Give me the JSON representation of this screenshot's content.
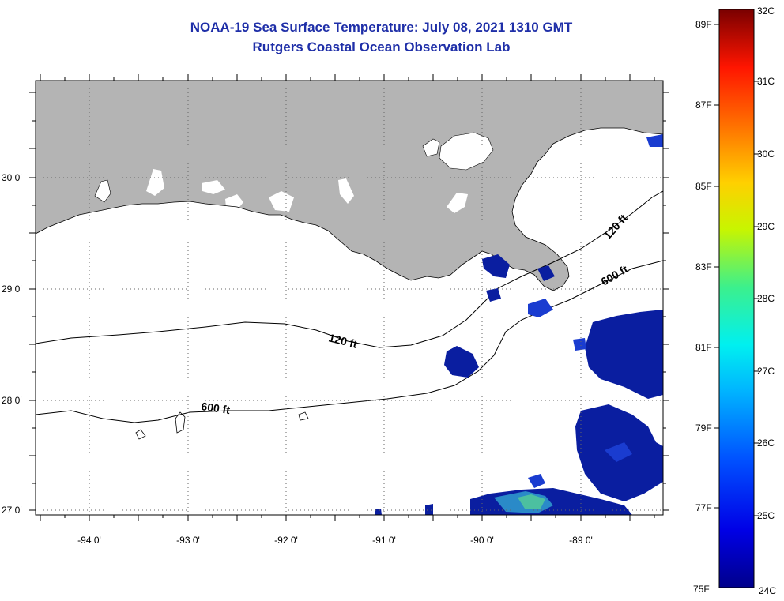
{
  "header": {
    "title": "NOAA-19 Sea Surface Temperature:  July 08, 2021 1310 GMT",
    "subtitle": "Rutgers Coastal Ocean Observation Lab"
  },
  "map": {
    "lon_labels": [
      {
        "lon": -94,
        "label": "-94 0'"
      },
      {
        "lon": -93,
        "label": "-93 0'"
      },
      {
        "lon": -92,
        "label": "-92 0'"
      },
      {
        "lon": -91,
        "label": "-91 0'"
      },
      {
        "lon": -90,
        "label": "-90 0'"
      },
      {
        "lon": -89,
        "label": "-89 0'"
      }
    ],
    "lat_labels": [
      {
        "lat": 30,
        "label": "30 0'"
      },
      {
        "lat": 29,
        "label": "29 0'"
      },
      {
        "lat": 28,
        "label": "28 0'"
      },
      {
        "lat": 27,
        "label": "27 0'"
      }
    ],
    "contour_labels": [
      "120 ft",
      "600 ft",
      "120 ft",
      "600 ft"
    ],
    "colors": {
      "land": "#b4b4b4",
      "water_no_data": "#ffffff",
      "cloud_free_cold": "#0a1ea0"
    }
  },
  "colorbar": {
    "fahrenheit": [
      "89F",
      "87F",
      "85F",
      "83F",
      "81F",
      "79F",
      "77F",
      "75F"
    ],
    "celsius": [
      "32C",
      "31C",
      "30C",
      "29C",
      "28C",
      "27C",
      "26C",
      "25C",
      "24C"
    ]
  }
}
